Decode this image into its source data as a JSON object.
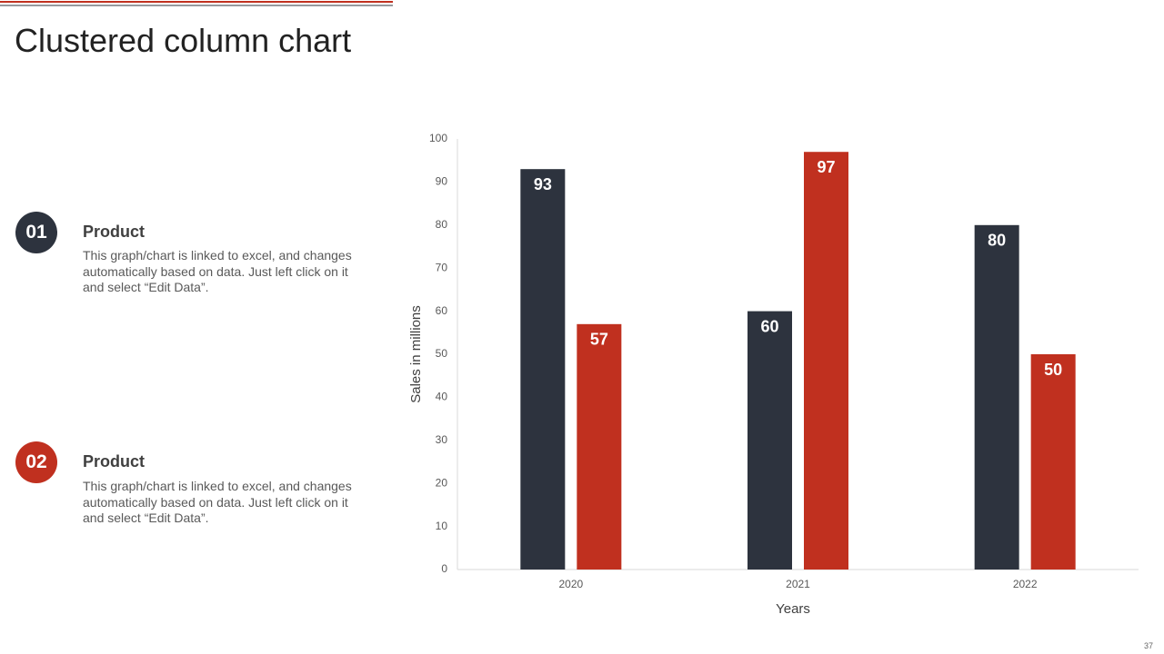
{
  "header": {
    "title": "Clustered column chart"
  },
  "items": [
    {
      "badge": "01",
      "heading": "Product",
      "text": "This graph/chart is linked to excel, and changes automatically based on data. Just left click on it and select “Edit Data”."
    },
    {
      "badge": "02",
      "heading": "Product",
      "text": "This graph/chart is linked to excel, and changes automatically based on data. Just left click on it and select “Edit Data”."
    }
  ],
  "chart_data": {
    "type": "bar",
    "categories": [
      "2020",
      "2021",
      "2022"
    ],
    "series": [
      {
        "color": "#2d333e",
        "values": [
          93,
          60,
          80
        ]
      },
      {
        "color": "#c0301f",
        "values": [
          57,
          97,
          50
        ]
      }
    ],
    "x_label": "Years",
    "y_label": "Sales in millions",
    "ylim": [
      0,
      100
    ],
    "yticks": [
      0,
      10,
      20,
      30,
      40,
      50,
      60,
      70,
      80,
      90,
      100
    ],
    "grid": false
  },
  "footer": {
    "page_number": "37"
  }
}
